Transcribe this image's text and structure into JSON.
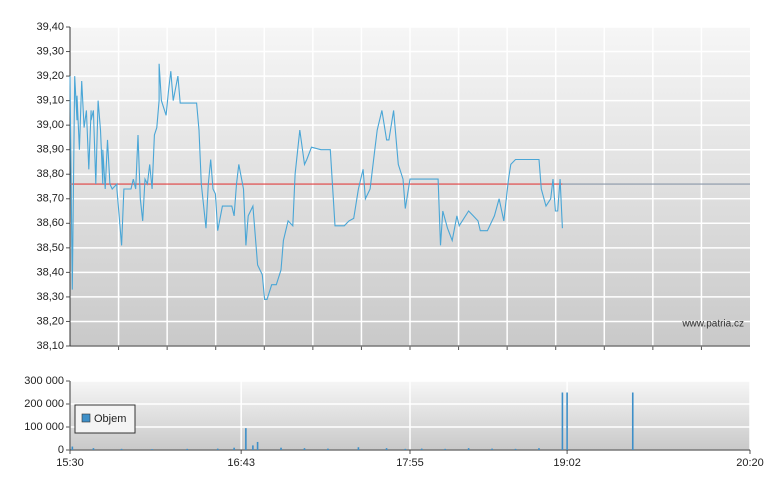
{
  "chart_data": [
    {
      "type": "line",
      "xlim": [
        "15:30",
        "20:20"
      ],
      "ylim": [
        38.1,
        39.4
      ],
      "yticks": [
        {
          "value": 38.1,
          "label": "38,10"
        },
        {
          "value": 38.2,
          "label": "38,20"
        },
        {
          "value": 38.3,
          "label": "38,30"
        },
        {
          "value": 38.4,
          "label": "38,40"
        },
        {
          "value": 38.5,
          "label": "38,50"
        },
        {
          "value": 38.6,
          "label": "38,60"
        },
        {
          "value": 38.7,
          "label": "38,70"
        },
        {
          "value": 38.8,
          "label": "38,80"
        },
        {
          "value": 38.9,
          "label": "38,90"
        },
        {
          "value": 39.0,
          "label": "39,00"
        },
        {
          "value": 39.1,
          "label": "39,10"
        },
        {
          "value": 39.2,
          "label": "39,20"
        },
        {
          "value": 39.3,
          "label": "39,30"
        },
        {
          "value": 39.4,
          "label": "39,40"
        }
      ],
      "reference_line": {
        "value": 38.76,
        "color": "#e04040",
        "after_color": "#8a97a8"
      },
      "watermark": "www.patria.cz",
      "x": [
        "15:30",
        "15:31",
        "15:32",
        "15:33",
        "15:33",
        "15:34",
        "15:35",
        "15:36",
        "15:37",
        "15:38",
        "15:39",
        "15:39",
        "15:40",
        "15:41",
        "15:42",
        "15:43",
        "15:44",
        "15:44",
        "15:45",
        "15:46",
        "15:47",
        "15:48",
        "15:50",
        "15:50",
        "15:52",
        "15:53",
        "15:54",
        "15:56",
        "15:57",
        "15:58",
        "15:59",
        "16:00",
        "16:01",
        "16:02",
        "16:03",
        "16:04",
        "16:05",
        "16:06",
        "16:07",
        "16:08",
        "16:08",
        "16:09",
        "16:11",
        "16:12",
        "16:13",
        "16:14",
        "16:16",
        "16:17",
        "16:19",
        "16:24",
        "16:25",
        "16:26",
        "16:28",
        "16:29",
        "16:30",
        "16:31",
        "16:32",
        "16:33",
        "16:35",
        "16:39",
        "16:40",
        "16:41",
        "16:42",
        "16:44",
        "16:45",
        "16:46",
        "16:48",
        "16:50",
        "16:52",
        "16:53",
        "16:54",
        "16:56",
        "16:58",
        "17:00",
        "17:01",
        "17:03",
        "17:05",
        "17:06",
        "17:08",
        "17:10",
        "17:11",
        "17:13",
        "17:17",
        "17:21",
        "17:23",
        "17:27",
        "17:29",
        "17:31",
        "17:33",
        "17:35",
        "17:36",
        "17:38",
        "17:40",
        "17:41",
        "17:43",
        "17:45",
        "17:46",
        "17:48",
        "17:50",
        "17:52",
        "17:53",
        "17:55",
        "18:07",
        "18:08",
        "18:09",
        "18:11",
        "18:13",
        "18:15",
        "18:16",
        "18:20",
        "18:22",
        "18:24",
        "18:25",
        "18:28",
        "18:31",
        "18:33",
        "18:35",
        "18:37",
        "18:38",
        "18:40",
        "18:46",
        "18:50",
        "18:51",
        "18:53",
        "18:55",
        "18:56",
        "18:57",
        "18:58",
        "18:59",
        "19:00"
      ],
      "series": [
        {
          "color": "#4aa6d6",
          "values": [
            39.2,
            38.33,
            39.2,
            39.02,
            39.12,
            38.9,
            39.18,
            38.99,
            39.06,
            38.82,
            39.06,
            39.02,
            39.06,
            38.76,
            39.1,
            38.98,
            38.76,
            38.9,
            38.74,
            38.94,
            38.76,
            38.74,
            38.76,
            38.74,
            38.51,
            38.74,
            38.74,
            38.74,
            38.78,
            38.74,
            38.96,
            38.7,
            38.61,
            38.78,
            38.76,
            38.84,
            38.74,
            38.96,
            38.99,
            39.1,
            39.25,
            39.1,
            39.04,
            39.14,
            39.22,
            39.1,
            39.2,
            39.09,
            39.09,
            39.09,
            38.98,
            38.76,
            38.58,
            38.76,
            38.86,
            38.74,
            38.72,
            38.57,
            38.67,
            38.67,
            38.63,
            38.76,
            38.84,
            38.74,
            38.51,
            38.63,
            38.67,
            38.43,
            38.39,
            38.29,
            38.29,
            38.35,
            38.35,
            38.41,
            38.53,
            38.61,
            38.59,
            38.8,
            38.98,
            38.84,
            38.86,
            38.91,
            38.9,
            38.9,
            38.59,
            38.59,
            38.61,
            38.62,
            38.74,
            38.82,
            38.7,
            38.74,
            38.9,
            38.98,
            39.06,
            38.94,
            38.94,
            39.06,
            38.84,
            38.78,
            38.66,
            38.78,
            38.78,
            38.51,
            38.65,
            38.58,
            38.53,
            38.63,
            38.59,
            38.65,
            38.63,
            38.61,
            38.57,
            38.57,
            38.63,
            38.7,
            38.61,
            38.78,
            38.84,
            38.86,
            38.86,
            38.86,
            38.74,
            38.67,
            38.7,
            38.78,
            38.65,
            38.65,
            38.78,
            38.58
          ]
        }
      ]
    },
    {
      "type": "bar",
      "xlim": [
        "15:30",
        "20:20"
      ],
      "xticks": [
        "15:30",
        "16:43",
        "17:55",
        "19:02",
        "20:20"
      ],
      "ylim": [
        0,
        300000
      ],
      "yticks": [
        0,
        {
          "value": 100000,
          "label": "100 000"
        },
        {
          "value": 200000,
          "label": "200 000"
        },
        {
          "value": 300000,
          "label": "300 000"
        }
      ],
      "x": [
        "15:31",
        "15:40",
        "15:52",
        "16:05",
        "16:20",
        "16:33",
        "16:40",
        "16:45",
        "16:48",
        "16:50",
        "17:00",
        "17:10",
        "17:20",
        "17:33",
        "17:45",
        "17:53",
        "18:00",
        "18:10",
        "18:20",
        "18:30",
        "18:40",
        "18:50",
        "19:00",
        "19:02",
        "19:30"
      ],
      "series": [
        {
          "name": "Objem",
          "color": "#3d8fc8",
          "values": [
            15000,
            8000,
            5000,
            4000,
            5000,
            6000,
            10000,
            95000,
            20000,
            35000,
            10000,
            8000,
            6000,
            12000,
            8000,
            5000,
            6000,
            5000,
            8000,
            6000,
            5000,
            8000,
            250000,
            250000,
            250000
          ]
        }
      ]
    }
  ]
}
